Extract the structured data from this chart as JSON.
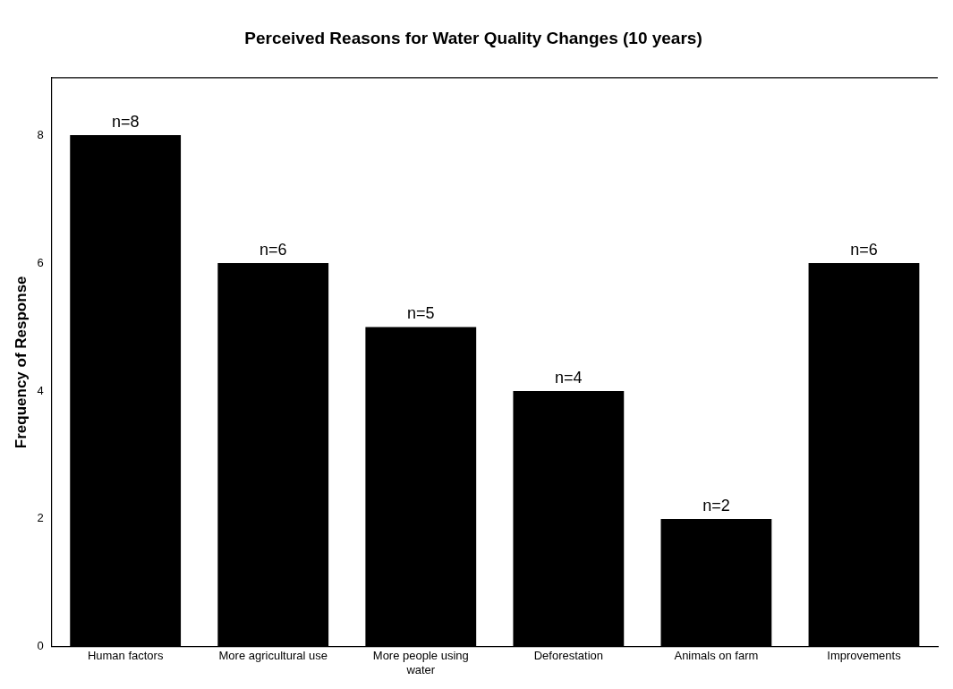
{
  "chart_data": {
    "type": "bar",
    "title": "Perceived Reasons for Water Quality Changes (10 years)",
    "ylabel": "Frequency of Response",
    "categories": [
      "Human factors",
      "More agricultural use",
      "More people using water",
      "Deforestation",
      "Animals on farm",
      "Improvements"
    ],
    "values": [
      8,
      6,
      5,
      4,
      2,
      6
    ],
    "value_labels": [
      "n=8",
      "n=6",
      "n=5",
      "n=4",
      "n=2",
      "n=6"
    ],
    "color": "#000000",
    "ylim": [
      0,
      8.9
    ],
    "yticks": [
      0,
      2,
      4,
      6,
      8
    ],
    "grid": false,
    "legend": false
  }
}
